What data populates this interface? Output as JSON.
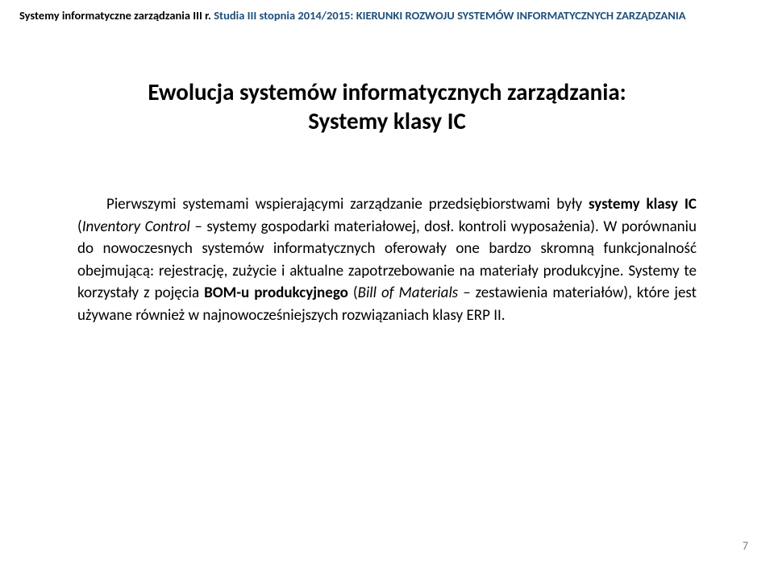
{
  "header": {
    "left": "Systemy informatyczne zarządzania III r.",
    "mid": "Studia III stopnia 2014/2015: ",
    "right": "KIERUNKI ROZWOJU SYSTEMÓW INFORMATYCZNYCH ZARZĄDZANIA"
  },
  "title": {
    "line1": "Ewolucja systemów informatycznych zarządzania:",
    "line2": "Systemy klasy IC"
  },
  "body": {
    "p1a": "Pierwszymi systemami wspierającymi zarządzanie przedsiębiorstwami były ",
    "p1b_bold": "systemy klasy IC",
    "p1c": " (",
    "p1d_italic": "Inventory Control",
    "p1e": " – systemy gospodarki materiałowej, dosł. kontroli wyposażenia). W porównaniu do nowoczesnych systemów informatycznych oferowały one bardzo skromną funkcjonalność obejmującą: rejestrację, zużycie i aktualne zapotrzebowanie na materiały produkcyjne. Systemy te korzystały z pojęcia ",
    "p1f_bold": "BOM-u produkcyjnego",
    "p1g": " (",
    "p1h_italic": "Bill of Materials",
    "p1i": " – zestawienia materiałów), które jest używane również w najnowocześniejszych rozwiązaniach klasy ERP II."
  },
  "page_number": "7",
  "colors": {
    "header_blue": "#1f4e79",
    "text": "#000000",
    "pagenum": "#808080",
    "background": "#ffffff"
  },
  "fonts": {
    "family": "Calibri, Arial, sans-serif",
    "header_size_pt": 11,
    "title_size_pt": 22,
    "body_size_pt": 14,
    "pagenum_size_pt": 11
  }
}
